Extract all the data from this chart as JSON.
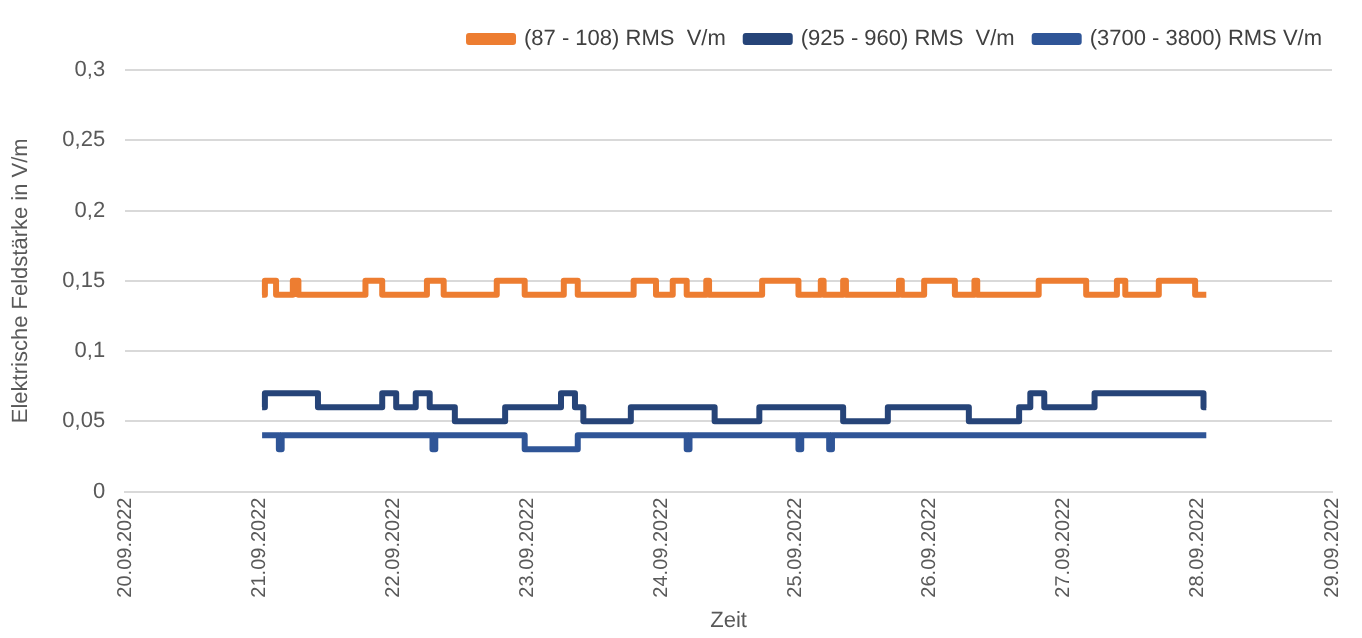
{
  "chart_data": {
    "type": "line",
    "xlabel": "Zeit",
    "ylabel": "Elektrische Feldstärke in V/m",
    "xlim": [
      "2022-09-20",
      "2022-09-29"
    ],
    "xticks": [
      {
        "value": "2022-09-20",
        "label": "20.09.2022"
      },
      {
        "value": "2022-09-21",
        "label": "21.09.2022"
      },
      {
        "value": "2022-09-22",
        "label": "22.09.2022"
      },
      {
        "value": "2022-09-23",
        "label": "23.09.2022"
      },
      {
        "value": "2022-09-24",
        "label": "24.09.2022"
      },
      {
        "value": "2022-09-25",
        "label": "25.09.2022"
      },
      {
        "value": "2022-09-26",
        "label": "26.09.2022"
      },
      {
        "value": "2022-09-27",
        "label": "27.09.2022"
      },
      {
        "value": "2022-09-28",
        "label": "28.09.2022"
      },
      {
        "value": "2022-09-29",
        "label": "29.09.2022"
      }
    ],
    "ylim": [
      0,
      0.3
    ],
    "yticks": [
      0,
      {
        "value": 0.05,
        "label": "0,05"
      },
      {
        "value": 0.1,
        "label": "0,1"
      },
      {
        "value": 0.15,
        "label": "0,15"
      },
      {
        "value": 0.2,
        "label": "0,2"
      },
      {
        "value": 0.25,
        "label": "0,25"
      },
      {
        "value": 0.3,
        "label": "0,3"
      }
    ],
    "grid": "y",
    "legend": "top right",
    "line_style": "solid",
    "series": [
      {
        "name": "(87 - 108) RMS  V/m",
        "color": "#ed7d31",
        "x": [
          "2022-09-21T00:30",
          "2022-09-21T01:00",
          "2022-09-21T01:00",
          "2022-09-21T03:00",
          "2022-09-21T03:00",
          "2022-09-21T06:00",
          "2022-09-21T06:00",
          "2022-09-21T07:00",
          "2022-09-21T07:00",
          "2022-09-21T19:00",
          "2022-09-21T19:00",
          "2022-09-21T22:00",
          "2022-09-21T22:00",
          "2022-09-22T06:00",
          "2022-09-22T06:00",
          "2022-09-22T09:00",
          "2022-09-22T09:00",
          "2022-09-22T18:30",
          "2022-09-22T18:30",
          "2022-09-22T23:30",
          "2022-09-22T23:30",
          "2022-09-23T06:30",
          "2022-09-23T06:30",
          "2022-09-23T09:00",
          "2022-09-23T09:00",
          "2022-09-23T19:00",
          "2022-09-23T19:00",
          "2022-09-23T23:00",
          "2022-09-23T23:00",
          "2022-09-24T02:00",
          "2022-09-24T02:00",
          "2022-09-24T04:30",
          "2022-09-24T04:30",
          "2022-09-24T08:00",
          "2022-09-24T08:00",
          "2022-09-24T08:30",
          "2022-09-24T08:30",
          "2022-09-24T18:00",
          "2022-09-24T18:00",
          "2022-09-25T00:30",
          "2022-09-25T00:30",
          "2022-09-25T04:30",
          "2022-09-25T04:30",
          "2022-09-25T05:00",
          "2022-09-25T05:00",
          "2022-09-25T08:30",
          "2022-09-25T08:30",
          "2022-09-25T09:00",
          "2022-09-25T09:00",
          "2022-09-25T18:30",
          "2022-09-25T18:30",
          "2022-09-25T19:00",
          "2022-09-25T19:00",
          "2022-09-25T23:00",
          "2022-09-25T23:00",
          "2022-09-26T04:30",
          "2022-09-26T04:30",
          "2022-09-26T08:00",
          "2022-09-26T08:00",
          "2022-09-26T08:30",
          "2022-09-26T08:30",
          "2022-09-26T19:30",
          "2022-09-26T19:30",
          "2022-09-27T04:00",
          "2022-09-27T04:00",
          "2022-09-27T09:30",
          "2022-09-27T09:30",
          "2022-09-27T11:00",
          "2022-09-27T11:00",
          "2022-09-27T17:00",
          "2022-09-27T17:00",
          "2022-09-27T23:30",
          "2022-09-27T23:30",
          "2022-09-28T01:30"
        ],
        "values": [
          0.14,
          0.14,
          0.15,
          0.15,
          0.14,
          0.14,
          0.15,
          0.15,
          0.14,
          0.14,
          0.15,
          0.15,
          0.14,
          0.14,
          0.15,
          0.15,
          0.14,
          0.14,
          0.15,
          0.15,
          0.14,
          0.14,
          0.15,
          0.15,
          0.14,
          0.14,
          0.15,
          0.15,
          0.14,
          0.14,
          0.15,
          0.15,
          0.14,
          0.14,
          0.15,
          0.15,
          0.14,
          0.14,
          0.15,
          0.15,
          0.14,
          0.14,
          0.15,
          0.15,
          0.14,
          0.14,
          0.15,
          0.15,
          0.14,
          0.14,
          0.15,
          0.15,
          0.14,
          0.14,
          0.15,
          0.15,
          0.14,
          0.14,
          0.15,
          0.15,
          0.14,
          0.14,
          0.15,
          0.15,
          0.14,
          0.14,
          0.15,
          0.15,
          0.14,
          0.14,
          0.15,
          0.15,
          0.14,
          0.14
        ]
      },
      {
        "name": "(925 - 960) RMS  V/m",
        "color": "#264478",
        "x": [
          "2022-09-21T00:30",
          "2022-09-21T01:00",
          "2022-09-21T01:00",
          "2022-09-21T10:30",
          "2022-09-21T10:30",
          "2022-09-21T22:00",
          "2022-09-21T22:00",
          "2022-09-22T00:30",
          "2022-09-22T00:30",
          "2022-09-22T04:00",
          "2022-09-22T04:00",
          "2022-09-22T06:30",
          "2022-09-22T06:30",
          "2022-09-22T11:00",
          "2022-09-22T11:00",
          "2022-09-22T20:00",
          "2022-09-22T20:00",
          "2022-09-23T06:00",
          "2022-09-23T06:00",
          "2022-09-23T08:30",
          "2022-09-23T08:30",
          "2022-09-23T10:00",
          "2022-09-23T10:00",
          "2022-09-23T18:30",
          "2022-09-23T18:30",
          "2022-09-24T09:30",
          "2022-09-24T09:30",
          "2022-09-24T17:30",
          "2022-09-24T17:30",
          "2022-09-25T08:30",
          "2022-09-25T08:30",
          "2022-09-25T16:30",
          "2022-09-25T16:30",
          "2022-09-26T07:00",
          "2022-09-26T07:00",
          "2022-09-26T16:00",
          "2022-09-26T16:00",
          "2022-09-26T18:00",
          "2022-09-26T18:00",
          "2022-09-26T20:30",
          "2022-09-26T20:30",
          "2022-09-27T05:30",
          "2022-09-27T05:30",
          "2022-09-28T01:00",
          "2022-09-28T01:00",
          "2022-09-28T01:30"
        ],
        "values": [
          0.06,
          0.06,
          0.07,
          0.07,
          0.06,
          0.06,
          0.07,
          0.07,
          0.06,
          0.06,
          0.07,
          0.07,
          0.06,
          0.06,
          0.05,
          0.05,
          0.06,
          0.06,
          0.07,
          0.07,
          0.06,
          0.06,
          0.05,
          0.05,
          0.06,
          0.06,
          0.05,
          0.05,
          0.06,
          0.06,
          0.05,
          0.05,
          0.06,
          0.06,
          0.05,
          0.05,
          0.06,
          0.06,
          0.07,
          0.07,
          0.06,
          0.06,
          0.07,
          0.07,
          0.06,
          0.06
        ]
      },
      {
        "name": "(3700 - 3800) RMS V/m",
        "color": "#2f5597",
        "x": [
          "2022-09-21T00:30",
          "2022-09-21T03:30",
          "2022-09-21T03:30",
          "2022-09-21T04:00",
          "2022-09-21T04:00",
          "2022-09-22T07:00",
          "2022-09-22T07:00",
          "2022-09-22T07:30",
          "2022-09-22T07:30",
          "2022-09-22T23:30",
          "2022-09-22T23:30",
          "2022-09-23T09:00",
          "2022-09-23T09:00",
          "2022-09-24T04:30",
          "2022-09-24T04:30",
          "2022-09-24T05:00",
          "2022-09-24T05:00",
          "2022-09-25T00:30",
          "2022-09-25T00:30",
          "2022-09-25T01:00",
          "2022-09-25T01:00",
          "2022-09-25T06:00",
          "2022-09-25T06:00",
          "2022-09-25T06:30",
          "2022-09-25T06:30",
          "2022-09-28T01:30"
        ],
        "values": [
          0.04,
          0.04,
          0.03,
          0.03,
          0.04,
          0.04,
          0.03,
          0.03,
          0.04,
          0.04,
          0.03,
          0.03,
          0.04,
          0.04,
          0.03,
          0.03,
          0.04,
          0.04,
          0.03,
          0.03,
          0.04,
          0.04,
          0.03,
          0.03,
          0.04,
          0.04
        ]
      }
    ]
  }
}
